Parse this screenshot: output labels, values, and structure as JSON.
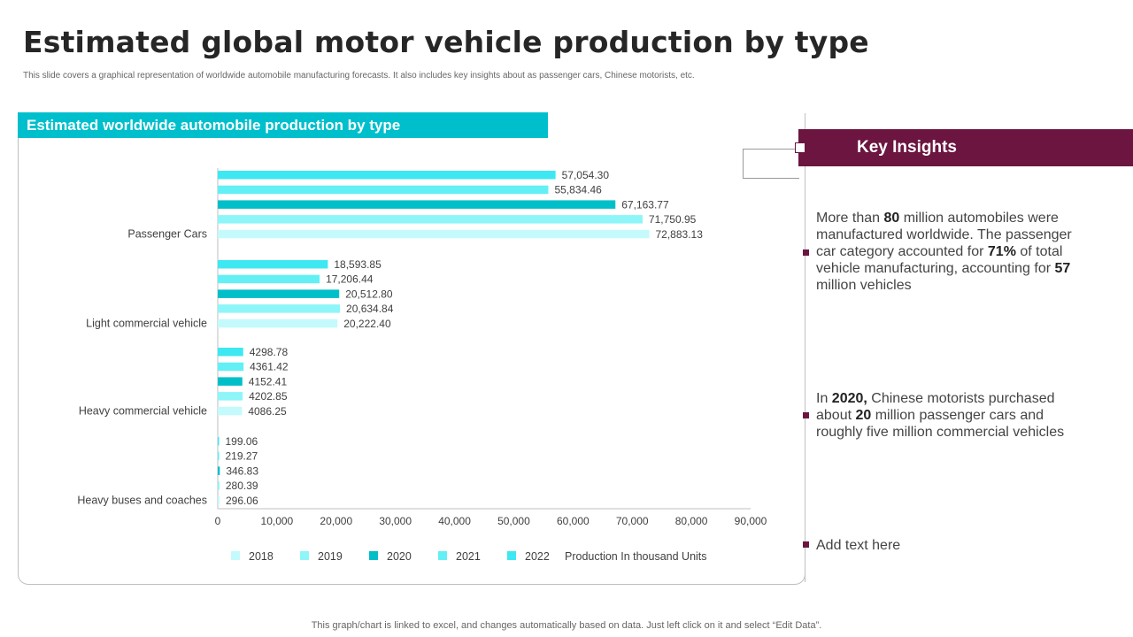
{
  "page": {
    "title": "Estimated global motor vehicle production by type",
    "subtitle": "This slide covers a graphical representation of worldwide automobile manufacturing forecasts. It also includes key insights about as passenger cars, Chinese motorists, etc.",
    "footer": "This graph/chart is linked to excel,  and changes automatically based on data. Just left click on it and select “Edit Data”."
  },
  "chart_panel": {
    "header": "Estimated worldwide automobile production by type"
  },
  "chart_data": {
    "type": "bar",
    "orientation": "horizontal",
    "title": "Estimated worldwide automobile production by type",
    "categories": [
      "Passenger Cars",
      "Light commercial vehicle",
      "Heavy commercial vehicle",
      "Heavy buses and coaches"
    ],
    "series": [
      {
        "name": "2022",
        "color": "#3ee8f2",
        "values": [
          57054.3,
          18593.85,
          4298.78,
          199.06
        ],
        "labels": [
          "57,054.30",
          "18,593.85",
          "4298.78",
          "199.06"
        ]
      },
      {
        "name": "2021",
        "color": "#62f0f5",
        "values": [
          55834.46,
          17206.44,
          4361.42,
          219.27
        ],
        "labels": [
          "55,834.46",
          "17,206.44",
          "4361.42",
          "219.27"
        ]
      },
      {
        "name": "2020",
        "color": "#00bfc8",
        "values": [
          67163.77,
          20512.8,
          4152.41,
          346.83
        ],
        "labels": [
          "67,163.77",
          "20,512.80",
          "4152.41",
          "346.83"
        ]
      },
      {
        "name": "2019",
        "color": "#8ef5f8",
        "values": [
          71750.95,
          20634.84,
          4202.85,
          280.39
        ],
        "labels": [
          "71,750.95",
          "20,634.84",
          "4202.85",
          "280.39"
        ]
      },
      {
        "name": "2018",
        "color": "#c4fafb",
        "values": [
          72883.13,
          20222.4,
          4086.25,
          296.06
        ],
        "labels": [
          "72,883.13",
          "20,222.40",
          "4086.25",
          "296.06"
        ]
      }
    ],
    "xlim": [
      0,
      90000
    ],
    "xticks": [
      0,
      10000,
      20000,
      30000,
      40000,
      50000,
      60000,
      70000,
      80000,
      90000
    ],
    "xtick_labels": [
      "0",
      "10,000",
      "20,000",
      "30,000",
      "40,000",
      "50,000",
      "60,000",
      "70,000",
      "80,000",
      "90,000"
    ],
    "legend": {
      "placement": "bottom",
      "items": [
        {
          "name": "2018",
          "color": "#c4fafb"
        },
        {
          "name": "2019",
          "color": "#8ef5f8"
        },
        {
          "name": "2020",
          "color": "#00bfc8"
        },
        {
          "name": "2021",
          "color": "#62f0f5"
        },
        {
          "name": "2022",
          "color": "#3ee8f2"
        }
      ],
      "unit_note": "Production In thousand Units"
    }
  },
  "insights": {
    "header": "Key Insights",
    "item1": {
      "t1": "More than ",
      "b1": "80",
      "t2": " million automobiles were manufactured  worldwide. The passenger car category accounted for ",
      "b2": "71%",
      "t3": " of total vehicle manufacturing,  accounting for ",
      "b3": "57",
      "t4": " million vehicles"
    },
    "item2": {
      "t1": "In  ",
      "b1": "2020,",
      "t2": " Chinese motorists purchased about ",
      "b2": "20",
      "t3": " million passenger cars and roughly  five million commercial vehicles"
    },
    "item3": "Add text here",
    "accent_color": "#6b1540"
  }
}
